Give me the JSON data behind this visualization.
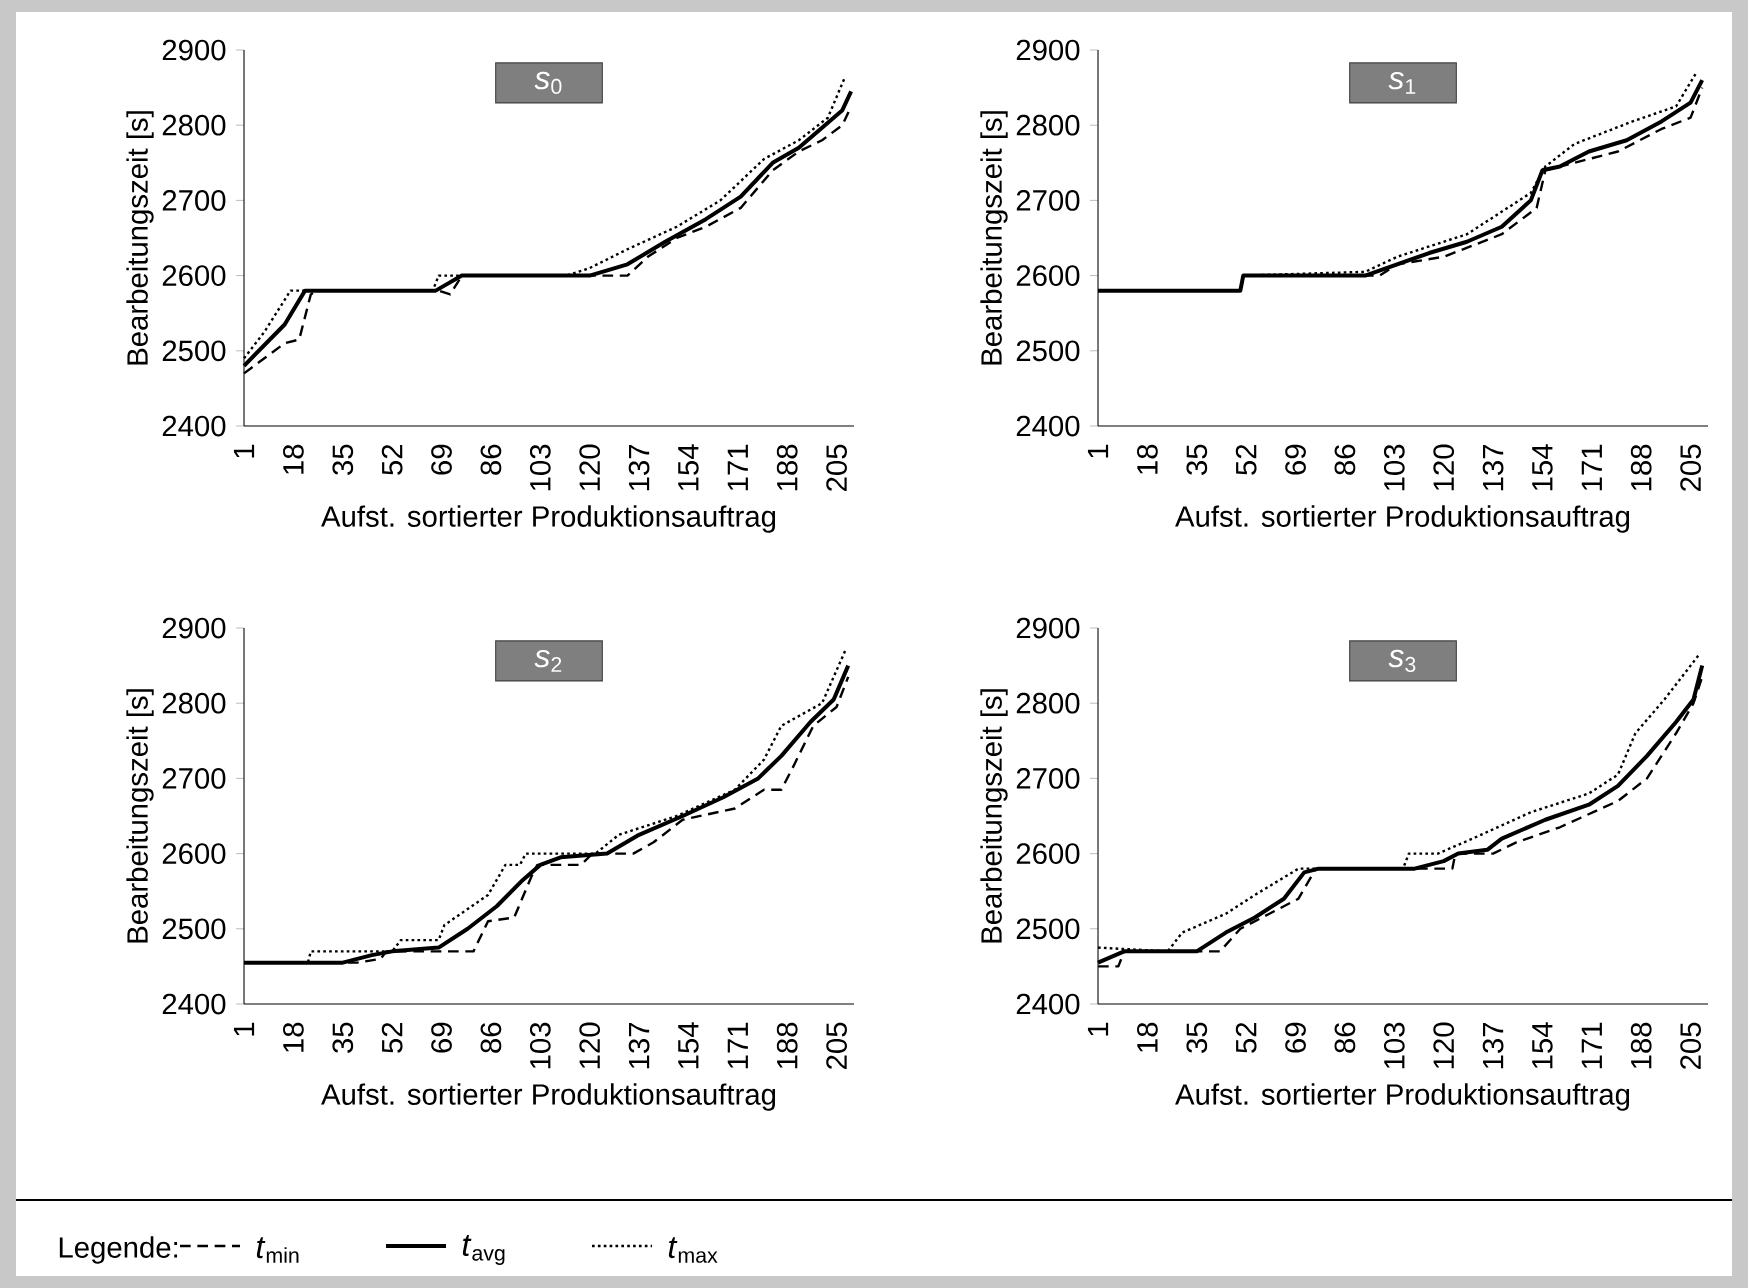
{
  "chart_data": [
    {
      "type": "line",
      "title": "*s*$_{0}$",
      "xlabel": "Aufst. sortierter Produktionsauftrag",
      "ylabel": "Bearbeitungszeit [s]",
      "xlim": [
        1,
        211
      ],
      "xticks": [
        1,
        18,
        35,
        52,
        69,
        86,
        103,
        120,
        137,
        154,
        171,
        188,
        205
      ],
      "ylim": [
        2400,
        2900
      ],
      "yticks": [
        2400,
        2500,
        2600,
        2700,
        2800,
        2900
      ],
      "legend": "bottom",
      "legend_title": "Legende:",
      "series": [
        {
          "name": "*t*$_{min}$",
          "color": "#000000",
          "line_style": "dashed",
          "x": [
            1,
            8,
            15,
            20,
            24,
            26,
            68,
            72,
            76,
            133,
            140,
            150,
            160,
            172,
            183,
            192,
            200,
            207,
            210
          ],
          "values": [
            2470,
            2490,
            2510,
            2515,
            2575,
            2580,
            2580,
            2575,
            2600,
            2600,
            2625,
            2650,
            2665,
            2690,
            2740,
            2765,
            2780,
            2800,
            2825
          ]
        },
        {
          "name": "*t*$_{avg}$",
          "color": "#000000",
          "line_style": "solid",
          "x": [
            1,
            15,
            22,
            67,
            76,
            120,
            133,
            146,
            160,
            172,
            183,
            192,
            201,
            207,
            210
          ],
          "values": [
            2480,
            2535,
            2580,
            2580,
            2600,
            2600,
            2615,
            2645,
            2675,
            2705,
            2750,
            2770,
            2800,
            2820,
            2845
          ]
        },
        {
          "name": "*t*$_{max}$",
          "color": "#000000",
          "line_style": "dotted",
          "x": [
            1,
            8,
            17,
            66,
            68,
            112,
            120,
            133,
            150,
            165,
            180,
            192,
            202,
            208
          ],
          "values": [
            2490,
            2525,
            2580,
            2580,
            2600,
            2600,
            2610,
            2635,
            2665,
            2700,
            2755,
            2780,
            2810,
            2865
          ]
        }
      ]
    },
    {
      "type": "line",
      "title": "*s*$_{1}$",
      "xlabel": "Aufst. sortierter Produktionsauftrag",
      "ylabel": "Bearbeitungszeit [s]",
      "xlim": [
        1,
        211
      ],
      "xticks": [
        1,
        18,
        35,
        52,
        69,
        86,
        103,
        120,
        137,
        154,
        171,
        188,
        205
      ],
      "ylim": [
        2400,
        2900
      ],
      "yticks": [
        2400,
        2500,
        2600,
        2700,
        2800,
        2900
      ],
      "series": [
        {
          "color": "#000000",
          "line_style": "dashed",
          "x": [
            1,
            50,
            51,
            98,
            104,
            120,
            140,
            152,
            155,
            165,
            180,
            195,
            205,
            209
          ],
          "values": [
            2580,
            2580,
            2600,
            2600,
            2615,
            2625,
            2655,
            2690,
            2740,
            2750,
            2765,
            2795,
            2810,
            2850
          ]
        },
        {
          "color": "#000000",
          "line_style": "solid",
          "x": [
            1,
            50,
            51,
            93,
            104,
            115,
            128,
            140,
            150,
            154,
            160,
            170,
            183,
            195,
            205,
            209
          ],
          "values": [
            2580,
            2580,
            2600,
            2600,
            2615,
            2630,
            2645,
            2665,
            2700,
            2740,
            2745,
            2765,
            2780,
            2805,
            2830,
            2860
          ]
        },
        {
          "color": "#000000",
          "line_style": "dotted",
          "x": [
            1,
            50,
            51,
            93,
            104,
            128,
            150,
            155,
            165,
            185,
            200,
            207
          ],
          "values": [
            2580,
            2580,
            2600,
            2605,
            2625,
            2655,
            2710,
            2745,
            2775,
            2805,
            2825,
            2870
          ]
        }
      ]
    },
    {
      "type": "line",
      "title": "*s*$_{2}$",
      "xlabel": "Aufst. sortierter Produktionsauftrag",
      "ylabel": "Bearbeitungszeit [s]",
      "xlim": [
        1,
        211
      ],
      "xticks": [
        1,
        18,
        35,
        52,
        69,
        86,
        103,
        120,
        137,
        154,
        171,
        188,
        205
      ],
      "ylim": [
        2400,
        2900
      ],
      "yticks": [
        2400,
        2500,
        2600,
        2700,
        2800,
        2900
      ],
      "series": [
        {
          "color": "#000000",
          "line_style": "dashed",
          "x": [
            1,
            40,
            48,
            50,
            80,
            85,
            94,
            100,
            102,
            117,
            121,
            135,
            142,
            152,
            170,
            180,
            186,
            190,
            197,
            205,
            209
          ],
          "values": [
            2455,
            2455,
            2460,
            2470,
            2470,
            2510,
            2515,
            2570,
            2585,
            2585,
            2600,
            2600,
            2615,
            2645,
            2660,
            2685,
            2685,
            2715,
            2770,
            2795,
            2835
          ]
        },
        {
          "color": "#000000",
          "line_style": "solid",
          "x": [
            1,
            35,
            45,
            52,
            68,
            78,
            88,
            97,
            103,
            110,
            126,
            137,
            152,
            166,
            178,
            186,
            196,
            204,
            209
          ],
          "values": [
            2455,
            2455,
            2465,
            2470,
            2475,
            2500,
            2530,
            2565,
            2585,
            2595,
            2600,
            2625,
            2650,
            2675,
            2700,
            2730,
            2775,
            2805,
            2850
          ]
        },
        {
          "color": "#000000",
          "line_style": "dotted",
          "x": [
            1,
            23,
            24,
            52,
            55,
            68,
            70,
            85,
            91,
            96,
            98,
            122,
            130,
            150,
            170,
            180,
            186,
            200,
            208
          ],
          "values": [
            2455,
            2455,
            2470,
            2470,
            2485,
            2485,
            2505,
            2545,
            2585,
            2585,
            2600,
            2600,
            2625,
            2650,
            2685,
            2725,
            2770,
            2800,
            2870
          ]
        }
      ]
    },
    {
      "type": "line",
      "title": "*s*$_{3}$",
      "xlabel": "Aufst. sortierter Produktionsauftrag",
      "ylabel": "Bearbeitungszeit [s]",
      "xlim": [
        1,
        211
      ],
      "xticks": [
        1,
        18,
        35,
        52,
        69,
        86,
        103,
        120,
        137,
        154,
        171,
        188,
        205
      ],
      "ylim": [
        2400,
        2900
      ],
      "yticks": [
        2400,
        2500,
        2600,
        2700,
        2800,
        2900
      ],
      "series": [
        {
          "color": "#000000",
          "line_style": "dashed",
          "x": [
            1,
            8,
            10,
            43,
            50,
            60,
            70,
            76,
            78,
            123,
            124,
            137,
            145,
            160,
            180,
            190,
            200,
            206,
            209
          ],
          "values": [
            2450,
            2450,
            2470,
            2470,
            2500,
            2520,
            2540,
            2580,
            2580,
            2580,
            2600,
            2600,
            2615,
            2635,
            2670,
            2700,
            2760,
            2800,
            2835
          ]
        },
        {
          "color": "#000000",
          "line_style": "solid",
          "x": [
            1,
            10,
            35,
            45,
            55,
            65,
            72,
            77,
            110,
            120,
            125,
            135,
            140,
            155,
            170,
            180,
            190,
            200,
            206,
            209
          ],
          "values": [
            2455,
            2470,
            2470,
            2495,
            2515,
            2540,
            2575,
            2580,
            2580,
            2590,
            2600,
            2605,
            2620,
            2645,
            2665,
            2690,
            2730,
            2775,
            2805,
            2850
          ]
        },
        {
          "color": "#000000",
          "line_style": "dotted",
          "x": [
            1,
            25,
            30,
            45,
            55,
            70,
            106,
            108,
            118,
            130,
            150,
            170,
            180,
            186,
            196,
            208
          ],
          "values": [
            2475,
            2470,
            2495,
            2520,
            2545,
            2580,
            2580,
            2600,
            2600,
            2620,
            2655,
            2680,
            2705,
            2760,
            2805,
            2865
          ]
        }
      ]
    }
  ]
}
